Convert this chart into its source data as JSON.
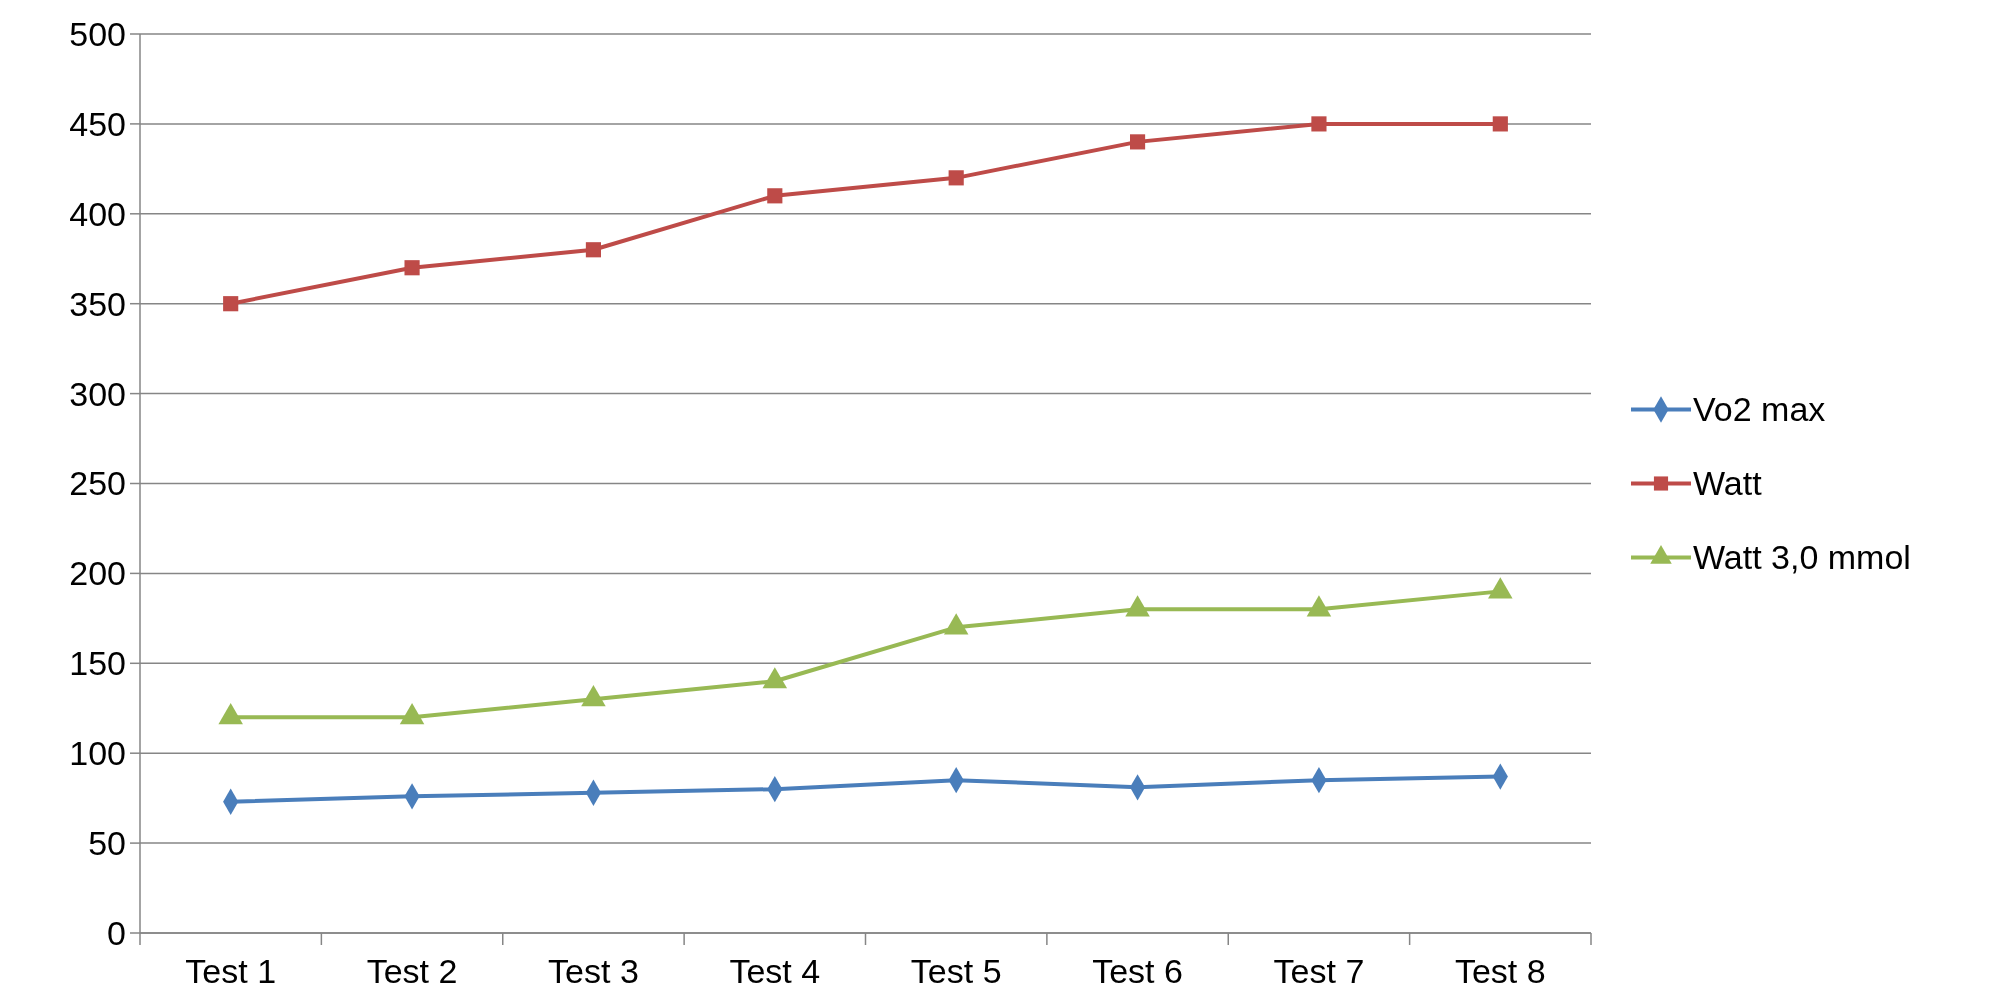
{
  "chart_data": {
    "type": "line",
    "categories": [
      "Test 1",
      "Test 2",
      "Test 3",
      "Test 4",
      "Test 5",
      "Test 6",
      "Test 7",
      "Test 8"
    ],
    "series": [
      {
        "name": "Vo2 max",
        "color": "#4a7ebb",
        "marker": "diamond",
        "values": [
          73,
          76,
          78,
          80,
          85,
          81,
          85,
          87
        ]
      },
      {
        "name": "Watt",
        "color": "#be4b48",
        "marker": "square",
        "values": [
          350,
          370,
          380,
          410,
          420,
          440,
          450,
          450
        ]
      },
      {
        "name": "Watt 3,0 mmol",
        "color": "#98b954",
        "marker": "triangle",
        "values": [
          120,
          120,
          130,
          140,
          170,
          180,
          180,
          190
        ]
      }
    ],
    "ylim": [
      0,
      500
    ],
    "yticks": [
      0,
      50,
      100,
      150,
      200,
      250,
      300,
      350,
      400,
      450,
      500
    ],
    "grid": "y",
    "legend": "right",
    "line_style": "solid"
  }
}
